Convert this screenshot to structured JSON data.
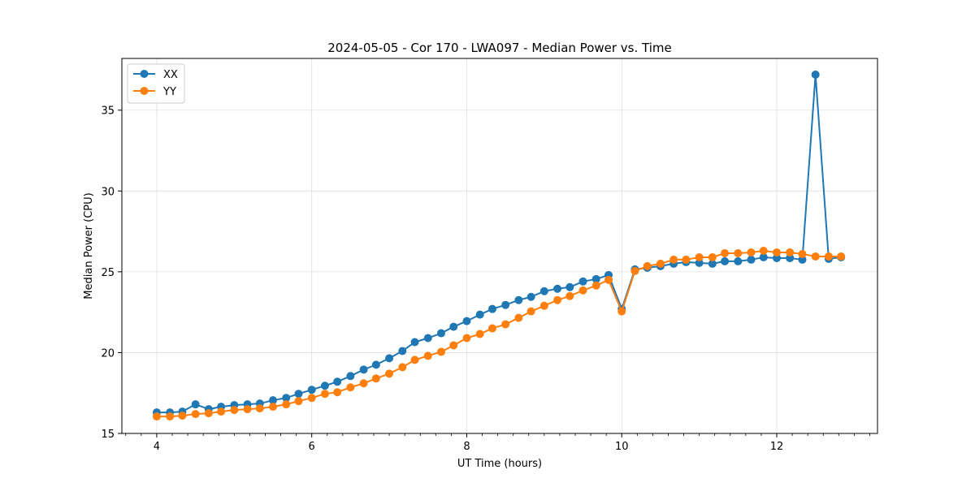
{
  "chart_data": {
    "type": "line",
    "title": "2024-05-05 - Cor 170 - LWA097 - Median Power vs. Time",
    "xlabel": "UT Time (hours)",
    "ylabel": "Median Power (CPU)",
    "xlim": [
      3.55,
      13.3
    ],
    "ylim": [
      15,
      38.2
    ],
    "xticks": [
      4,
      6,
      8,
      10,
      12
    ],
    "yticks": [
      15,
      20,
      25,
      30,
      35
    ],
    "grid": true,
    "legend_position": "upper-left",
    "series": [
      {
        "name": "XX",
        "color": "#1f77b4",
        "points": [
          [
            4.0,
            16.3
          ],
          [
            4.17,
            16.3
          ],
          [
            4.33,
            16.35
          ],
          [
            4.5,
            16.8
          ],
          [
            4.67,
            16.5
          ],
          [
            4.83,
            16.65
          ],
          [
            5.0,
            16.75
          ],
          [
            5.17,
            16.8
          ],
          [
            5.33,
            16.85
          ],
          [
            5.5,
            17.05
          ],
          [
            5.67,
            17.2
          ],
          [
            5.83,
            17.45
          ],
          [
            6.0,
            17.7
          ],
          [
            6.17,
            17.95
          ],
          [
            6.33,
            18.2
          ],
          [
            6.5,
            18.55
          ],
          [
            6.67,
            18.95
          ],
          [
            6.83,
            19.25
          ],
          [
            7.0,
            19.65
          ],
          [
            7.17,
            20.1
          ],
          [
            7.33,
            20.65
          ],
          [
            7.5,
            20.9
          ],
          [
            7.67,
            21.2
          ],
          [
            7.83,
            21.6
          ],
          [
            8.0,
            21.95
          ],
          [
            8.17,
            22.35
          ],
          [
            8.33,
            22.7
          ],
          [
            8.5,
            22.95
          ],
          [
            8.67,
            23.25
          ],
          [
            8.83,
            23.45
          ],
          [
            9.0,
            23.8
          ],
          [
            9.17,
            23.95
          ],
          [
            9.33,
            24.05
          ],
          [
            9.5,
            24.4
          ],
          [
            9.67,
            24.55
          ],
          [
            9.83,
            24.8
          ],
          [
            10.0,
            22.7
          ],
          [
            10.17,
            25.15
          ],
          [
            10.33,
            25.25
          ],
          [
            10.5,
            25.35
          ],
          [
            10.67,
            25.5
          ],
          [
            10.83,
            25.6
          ],
          [
            11.0,
            25.55
          ],
          [
            11.17,
            25.5
          ],
          [
            11.33,
            25.65
          ],
          [
            11.5,
            25.65
          ],
          [
            11.67,
            25.75
          ],
          [
            11.83,
            25.9
          ],
          [
            12.0,
            25.85
          ],
          [
            12.17,
            25.85
          ],
          [
            12.33,
            25.75
          ],
          [
            12.5,
            37.2
          ],
          [
            12.67,
            25.8
          ],
          [
            12.83,
            25.9
          ]
        ]
      },
      {
        "name": "YY",
        "color": "#ff7f0e",
        "points": [
          [
            4.0,
            16.05
          ],
          [
            4.17,
            16.05
          ],
          [
            4.33,
            16.1
          ],
          [
            4.5,
            16.2
          ],
          [
            4.67,
            16.25
          ],
          [
            4.83,
            16.35
          ],
          [
            5.0,
            16.45
          ],
          [
            5.17,
            16.5
          ],
          [
            5.33,
            16.55
          ],
          [
            5.5,
            16.65
          ],
          [
            5.67,
            16.8
          ],
          [
            5.83,
            17.0
          ],
          [
            6.0,
            17.2
          ],
          [
            6.17,
            17.45
          ],
          [
            6.33,
            17.55
          ],
          [
            6.5,
            17.85
          ],
          [
            6.67,
            18.1
          ],
          [
            6.83,
            18.4
          ],
          [
            7.0,
            18.7
          ],
          [
            7.17,
            19.1
          ],
          [
            7.33,
            19.55
          ],
          [
            7.5,
            19.8
          ],
          [
            7.67,
            20.05
          ],
          [
            7.83,
            20.45
          ],
          [
            8.0,
            20.9
          ],
          [
            8.17,
            21.15
          ],
          [
            8.33,
            21.5
          ],
          [
            8.5,
            21.75
          ],
          [
            8.67,
            22.15
          ],
          [
            8.83,
            22.55
          ],
          [
            9.0,
            22.9
          ],
          [
            9.17,
            23.25
          ],
          [
            9.33,
            23.5
          ],
          [
            9.5,
            23.85
          ],
          [
            9.67,
            24.15
          ],
          [
            9.83,
            24.5
          ],
          [
            10.0,
            22.55
          ],
          [
            10.17,
            25.05
          ],
          [
            10.33,
            25.35
          ],
          [
            10.5,
            25.5
          ],
          [
            10.67,
            25.75
          ],
          [
            10.83,
            25.75
          ],
          [
            11.0,
            25.9
          ],
          [
            11.17,
            25.9
          ],
          [
            11.33,
            26.15
          ],
          [
            11.5,
            26.15
          ],
          [
            11.67,
            26.2
          ],
          [
            11.83,
            26.3
          ],
          [
            12.0,
            26.2
          ],
          [
            12.17,
            26.2
          ],
          [
            12.33,
            26.1
          ],
          [
            12.5,
            25.95
          ],
          [
            12.67,
            25.95
          ],
          [
            12.83,
            25.95
          ]
        ]
      }
    ]
  }
}
